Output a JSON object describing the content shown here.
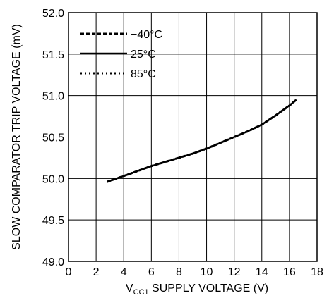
{
  "chart_data": {
    "type": "line",
    "xlabel": {
      "main": "V",
      "sub": "CC1",
      "rest": " SUPPLY VOLTAGE (V)"
    },
    "ylabel": "SLOW COMPARATOR TRIP VOLTAGE (mV)",
    "xlim": [
      0,
      18
    ],
    "ylim": [
      49.0,
      52.0
    ],
    "xticks": [
      "0",
      "2",
      "4",
      "6",
      "8",
      "10",
      "12",
      "14",
      "16",
      "18"
    ],
    "yticks": [
      "49.0",
      "49.5",
      "50.0",
      "50.5",
      "51.0",
      "51.5",
      "52.0"
    ],
    "grid": true,
    "legend_position": "top-left",
    "series": [
      {
        "name": "−40°C",
        "style": "dashed",
        "x": [
          2.8,
          4,
          5,
          6,
          7,
          8,
          9,
          10,
          11,
          12,
          13,
          14,
          15,
          16,
          16.5
        ],
        "y": [
          49.96,
          50.03,
          50.09,
          50.15,
          50.2,
          50.25,
          50.3,
          50.36,
          50.43,
          50.5,
          50.57,
          50.65,
          50.76,
          50.88,
          50.95
        ]
      },
      {
        "name": "25°C",
        "style": "solid",
        "x": [
          2.8,
          4,
          5,
          6,
          7,
          8,
          9,
          10,
          11,
          12,
          13,
          14,
          15,
          16,
          16.5
        ],
        "y": [
          49.96,
          50.03,
          50.09,
          50.15,
          50.2,
          50.25,
          50.3,
          50.36,
          50.43,
          50.5,
          50.57,
          50.65,
          50.76,
          50.88,
          50.95
        ]
      },
      {
        "name": "85°C",
        "style": "dotted",
        "x": [
          2.8,
          4,
          5,
          6,
          7,
          8,
          9,
          10,
          11,
          12,
          13,
          14,
          15,
          16,
          16.5
        ],
        "y": [
          49.96,
          50.03,
          50.09,
          50.15,
          50.2,
          50.25,
          50.3,
          50.36,
          50.43,
          50.5,
          50.57,
          50.65,
          50.76,
          50.88,
          50.95
        ]
      }
    ]
  }
}
